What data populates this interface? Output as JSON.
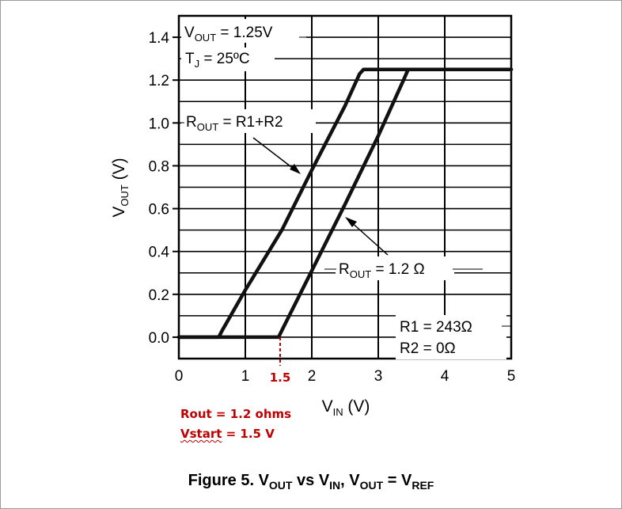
{
  "chart_data": {
    "type": "line",
    "xlabel": "V",
    "xlabel_sub": "IN",
    "xlabel_unit": " (V)",
    "ylabel": "V",
    "ylabel_sub": "OUT",
    "ylabel_unit": " (V)",
    "xlim": [
      0,
      5
    ],
    "ylim": [
      -0.1,
      1.5
    ],
    "x_ticks": [
      "0",
      "1",
      "2",
      "3",
      "4",
      "5"
    ],
    "y_ticks": [
      "0.0",
      "0.2",
      "0.4",
      "0.6",
      "0.8",
      "1.0",
      "1.2",
      "1.4"
    ],
    "grid": true,
    "series": [
      {
        "name": "R1+R2",
        "points": [
          [
            0,
            0
          ],
          [
            0.6,
            0.0
          ],
          [
            0.65,
            0.03
          ],
          [
            1.0,
            0.22
          ],
          [
            1.55,
            0.5
          ],
          [
            2.0,
            0.78
          ],
          [
            2.5,
            1.08
          ],
          [
            2.72,
            1.23
          ],
          [
            2.78,
            1.25
          ],
          [
            5,
            1.25
          ]
        ]
      },
      {
        "name": "1.2 Ω",
        "points": [
          [
            0,
            0
          ],
          [
            1.5,
            0.0
          ],
          [
            1.58,
            0.05
          ],
          [
            2.0,
            0.31
          ],
          [
            2.5,
            0.62
          ],
          [
            3.0,
            0.94
          ],
          [
            3.38,
            1.2
          ],
          [
            3.45,
            1.25
          ],
          [
            5,
            1.25
          ]
        ]
      }
    ],
    "annotations": {
      "vout_label": "V",
      "vout_sub": "OUT",
      "vout_value": " = 1.25V",
      "tj_label": "T",
      "tj_sub": "J",
      "tj_value": " = 25ºC",
      "rout_a_label": "R",
      "rout_a_sub": "OUT",
      "rout_a_value": " = R1+R2",
      "rout_b_label": "R",
      "rout_b_sub": "OUT",
      "rout_b_value": " = 1.2 Ω",
      "r1": "R1 = 243Ω",
      "r2": "R2 = 0Ω",
      "marker_label": "1.5",
      "marker_x": 1.5
    }
  },
  "notes": {
    "rout": "Rout = 1.2 ohms",
    "vstart_word": "Vstart",
    "vstart_rest": " = 1.5 V"
  },
  "caption": {
    "prefix": "Figure 5. V",
    "sub1": "OUT",
    "mid1": " vs V",
    "sub2": "IN",
    "mid2": ", V",
    "sub3": "OUT",
    "mid3": " = V",
    "sub4": "REF"
  },
  "colors": {
    "curve": "#111111",
    "grid": "#000000",
    "annotation_red": "#c00000"
  }
}
